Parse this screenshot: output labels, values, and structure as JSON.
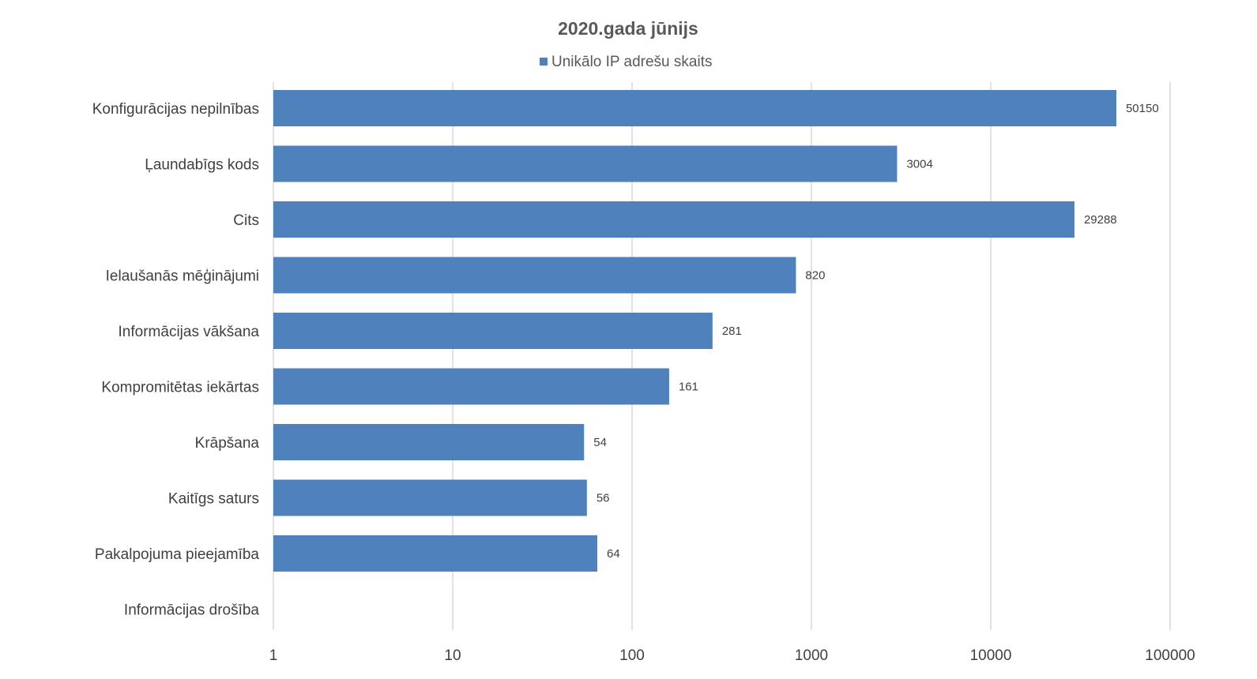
{
  "chart_data": {
    "type": "bar",
    "orientation": "horizontal",
    "title": "2020.gada jūnijs",
    "xscale": "log",
    "xlim": [
      1,
      100000
    ],
    "ticks": [
      "1",
      "10",
      "100",
      "1000",
      "10000",
      "100000"
    ],
    "tick_values": [
      1,
      10,
      100,
      1000,
      10000,
      100000
    ],
    "grid": true,
    "legend_position": "top",
    "categories": [
      "Konfigurācijas nepilnības",
      "Ļaundabīgs kods",
      "Cits",
      "Ielaušanās mēģinājumi",
      "Informācijas vākšana",
      "Kompromitētas iekārtas",
      "Krāpšana",
      "Kaitīgs saturs",
      "Pakalpojuma pieejamība",
      "Informācijas drošība"
    ],
    "series": [
      {
        "name": "Unikālo IP adrešu skaits",
        "color": "#4f81bd",
        "values": [
          50150,
          3004,
          29288,
          820,
          281,
          161,
          54,
          56,
          64,
          null
        ]
      }
    ]
  }
}
